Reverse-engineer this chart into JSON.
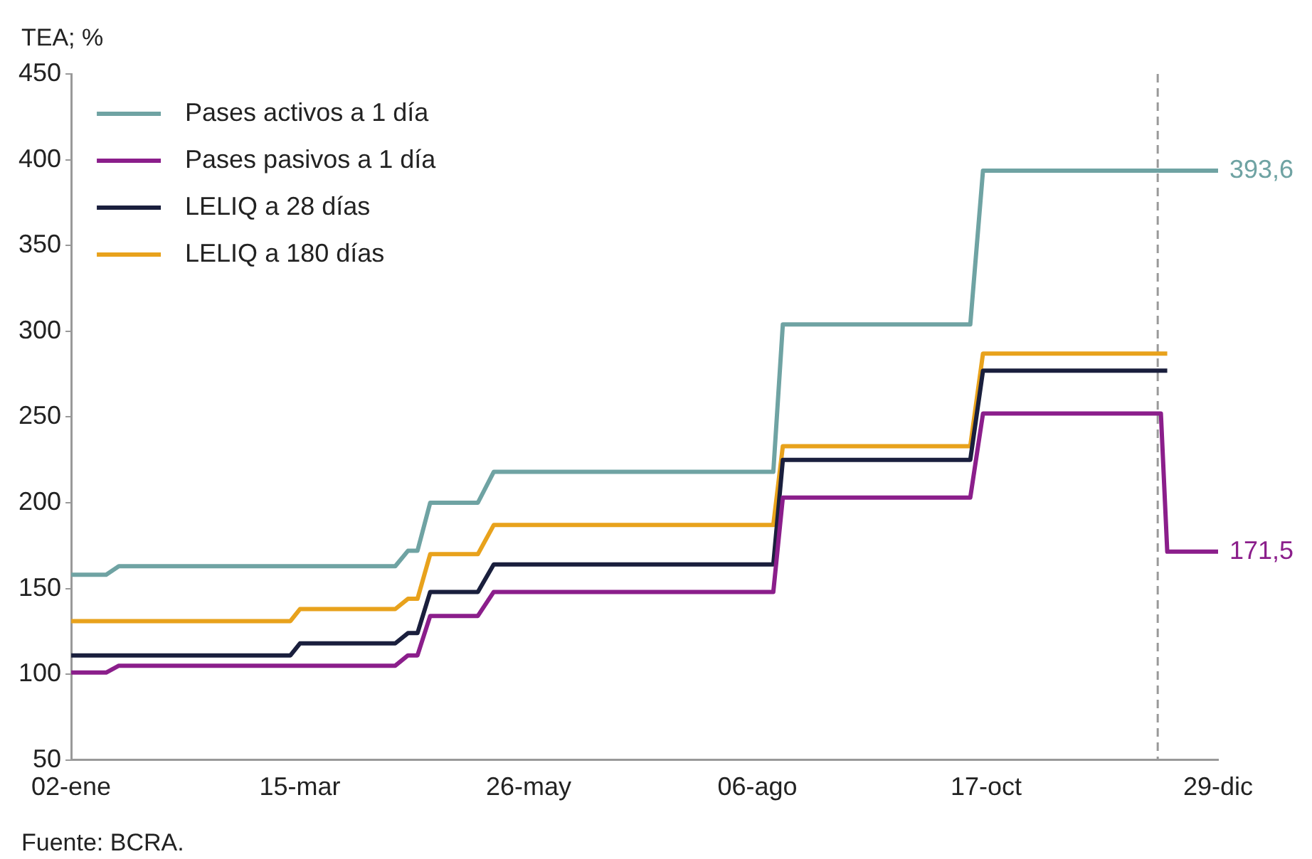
{
  "chart_data": {
    "type": "line",
    "ylabel": "TEA; %",
    "annotations": [
      "Fuente: BCRA."
    ],
    "xlim": [
      "--01-02",
      "--12-29"
    ],
    "xticks": [
      {
        "value": "--01-02",
        "label": "02-ene"
      },
      {
        "value": "--03-15",
        "label": "15-mar"
      },
      {
        "value": "--05-26",
        "label": "26-may"
      },
      {
        "value": "--08-06",
        "label": "06-ago"
      },
      {
        "value": "--10-17",
        "label": "17-oct"
      },
      {
        "value": "--12-29",
        "label": "29-dic"
      }
    ],
    "ylim": [
      50,
      450
    ],
    "yticks": [
      50,
      100,
      150,
      200,
      250,
      300,
      350,
      400,
      450
    ],
    "grid": false,
    "legend": "top left",
    "marker": "none",
    "line_style": "solid",
    "ref_lines": [
      {
        "axis": "x",
        "value": "--12-10",
        "color": "#999999",
        "line_style": "dashed"
      }
    ],
    "series": [
      {
        "name": "Pases activos a 1 día",
        "color": "#6fa3a3",
        "x": [
          "--01-02",
          "--01-13",
          "--01-17",
          "--04-14",
          "--04-18",
          "--04-21",
          "--04-25",
          "--05-10",
          "--05-15",
          "--08-11",
          "--08-14",
          "--10-12",
          "--10-16",
          "--12-29"
        ],
        "values": [
          158,
          158,
          163,
          163,
          172,
          172,
          200,
          200,
          218,
          218,
          304,
          304,
          393.6,
          393.6
        ],
        "value_labels": [
          null,
          null,
          null,
          null,
          null,
          null,
          null,
          null,
          null,
          null,
          null,
          null,
          null,
          "393,6"
        ]
      },
      {
        "name": "Pases pasivos a 1 día",
        "color": "#8b1e8b",
        "x": [
          "--01-02",
          "--01-13",
          "--01-17",
          "--04-14",
          "--04-18",
          "--04-21",
          "--04-25",
          "--05-10",
          "--05-15",
          "--08-11",
          "--08-14",
          "--10-12",
          "--10-16",
          "--12-11",
          "--12-13",
          "--12-29"
        ],
        "values": [
          101,
          101,
          105,
          105,
          111,
          111,
          134,
          134,
          148,
          148,
          203,
          203,
          252,
          252,
          171.5,
          171.5
        ],
        "value_labels": [
          null,
          null,
          null,
          null,
          null,
          null,
          null,
          null,
          null,
          null,
          null,
          null,
          null,
          null,
          null,
          "171,5"
        ]
      },
      {
        "name": "LELIQ a 28 días",
        "color": "#1a1f3d",
        "x": [
          "--01-02",
          "--03-12",
          "--03-15",
          "--04-14",
          "--04-18",
          "--04-21",
          "--04-25",
          "--05-10",
          "--05-15",
          "--08-11",
          "--08-14",
          "--10-12",
          "--10-16",
          "--12-13"
        ],
        "values": [
          111,
          111,
          118,
          118,
          124,
          124,
          148,
          148,
          164,
          164,
          225,
          225,
          277,
          277
        ]
      },
      {
        "name": "LELIQ a 180 días",
        "color": "#e8a21c",
        "x": [
          "--01-02",
          "--03-12",
          "--03-15",
          "--04-14",
          "--04-18",
          "--04-21",
          "--04-25",
          "--05-10",
          "--05-15",
          "--08-11",
          "--08-14",
          "--10-12",
          "--10-16",
          "--12-13"
        ],
        "values": [
          131,
          131,
          138,
          138,
          144,
          144,
          170,
          170,
          187,
          187,
          233,
          233,
          287,
          287
        ]
      }
    ]
  }
}
